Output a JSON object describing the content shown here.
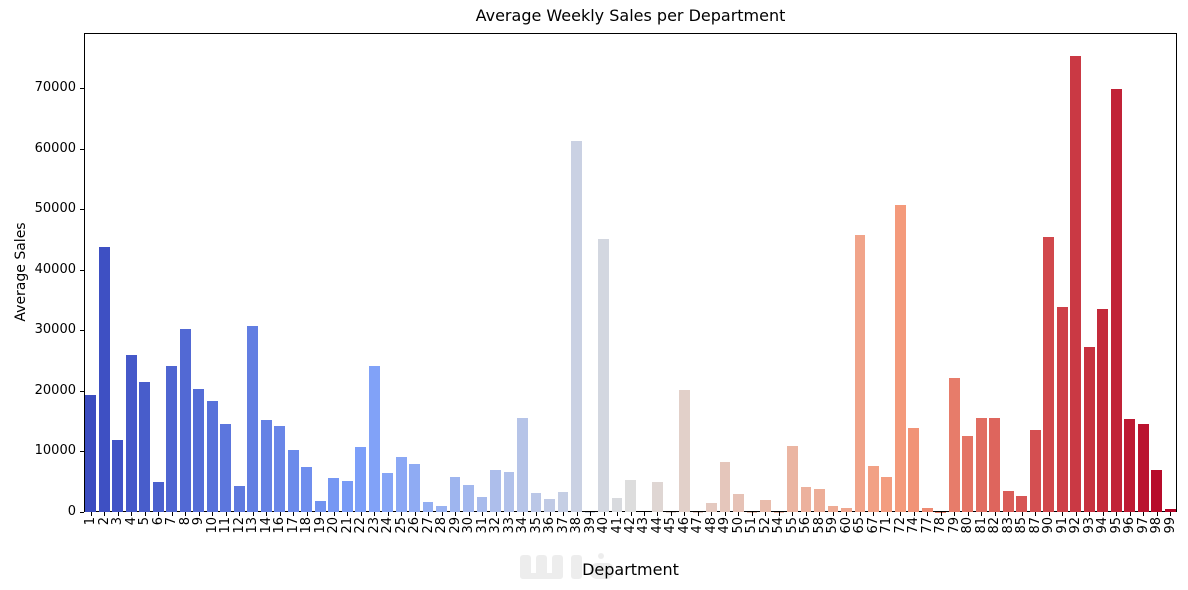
{
  "chart_data": {
    "type": "bar",
    "title": "Average Weekly Sales per Department",
    "xlabel": "Department",
    "ylabel": "Average Sales",
    "categories": [
      "1",
      "2",
      "3",
      "4",
      "5",
      "6",
      "7",
      "8",
      "9",
      "10",
      "11",
      "12",
      "13",
      "14",
      "16",
      "17",
      "18",
      "19",
      "20",
      "21",
      "22",
      "23",
      "24",
      "25",
      "26",
      "27",
      "28",
      "29",
      "30",
      "31",
      "32",
      "33",
      "34",
      "35",
      "36",
      "37",
      "38",
      "39",
      "40",
      "41",
      "42",
      "43",
      "44",
      "45",
      "46",
      "47",
      "48",
      "49",
      "50",
      "51",
      "52",
      "54",
      "55",
      "56",
      "58",
      "59",
      "60",
      "65",
      "67",
      "71",
      "72",
      "74",
      "77",
      "78",
      "79",
      "80",
      "81",
      "82",
      "83",
      "85",
      "87",
      "90",
      "91",
      "92",
      "93",
      "94",
      "95",
      "96",
      "97",
      "98",
      "99"
    ],
    "values": [
      19400,
      43700,
      11900,
      26000,
      21400,
      5000,
      24100,
      30300,
      20300,
      18400,
      14600,
      4300,
      30700,
      15200,
      14200,
      10200,
      7400,
      1800,
      5600,
      5100,
      10800,
      24100,
      6500,
      9100,
      7900,
      1700,
      1000,
      5800,
      4400,
      2500,
      6900,
      6600,
      15600,
      3100,
      2200,
      3300,
      61200,
      15,
      45100,
      2300,
      5300,
      10,
      4900,
      30,
      20200,
      40,
      1500,
      8200,
      2900,
      20,
      2000,
      30,
      10900,
      4100,
      3800,
      1000,
      650,
      45700,
      7600,
      5700,
      50700,
      13800,
      600,
      15,
      22200,
      12500,
      15500,
      15600,
      3500,
      2600,
      13600,
      45400,
      33900,
      75300,
      27200,
      33600,
      69800,
      15400,
      14500,
      7000,
      450
    ],
    "yticks": [
      0,
      10000,
      20000,
      30000,
      40000,
      50000,
      60000,
      70000
    ],
    "ylim": [
      0,
      79100
    ],
    "grid": false,
    "legend": null,
    "bar_orientation": "vertical",
    "xtick_rotation_deg": 90,
    "palette": {
      "name": "coolwarm",
      "stops": [
        "#3b4cc0",
        "#7c9ff9",
        "#dddddd",
        "#f49a7b",
        "#b40426"
      ]
    },
    "background_color": "#ffffff",
    "spine_color": "#000000"
  }
}
